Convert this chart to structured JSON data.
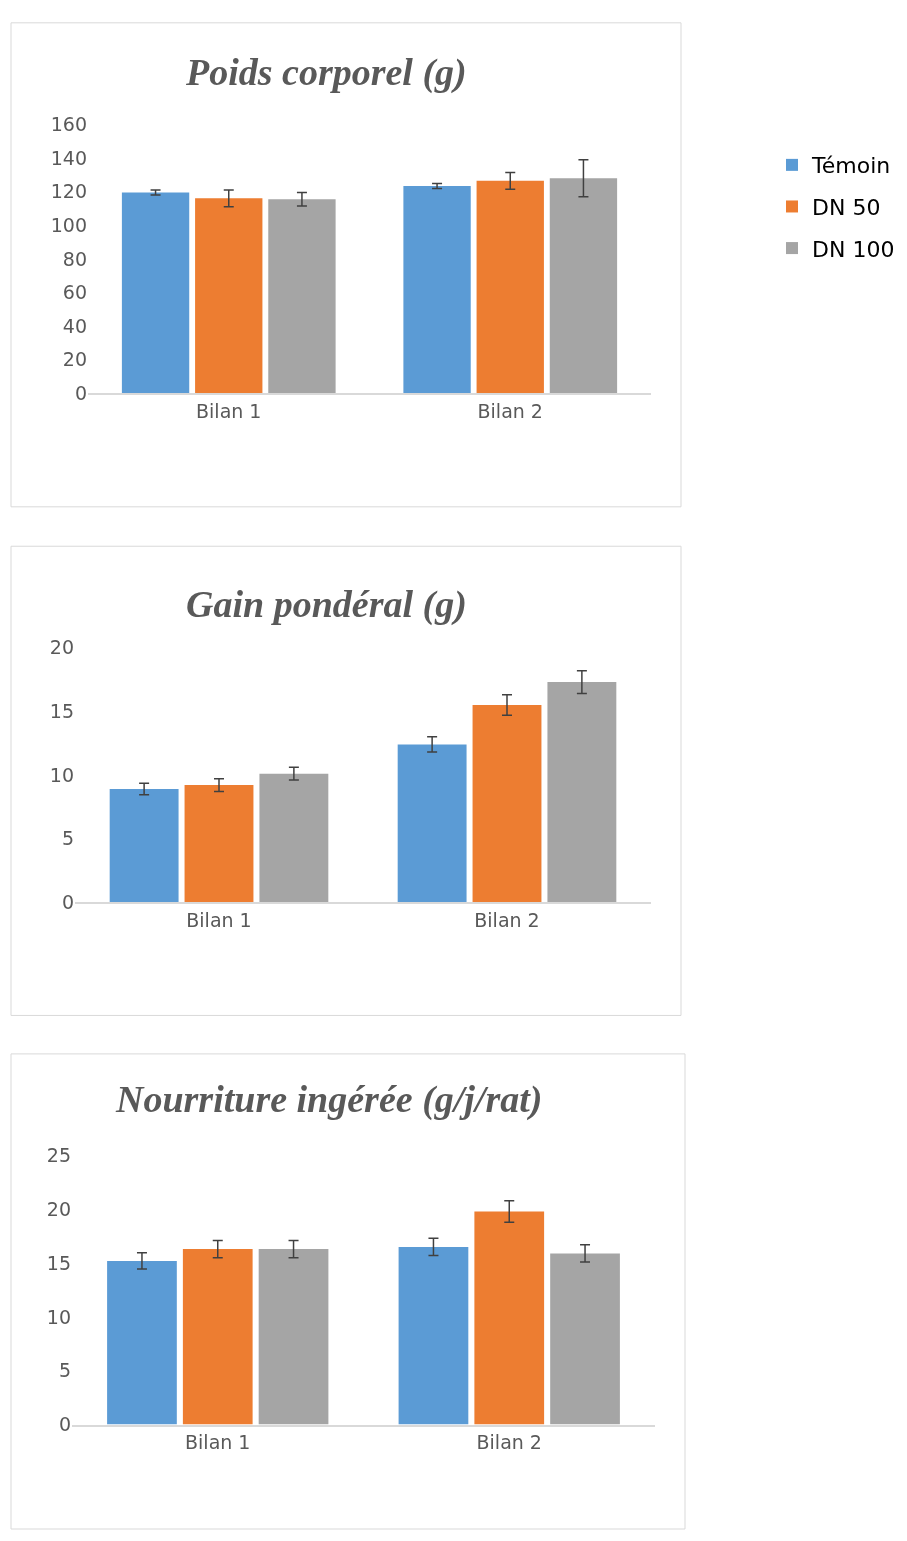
{
  "chart_data": [
    {
      "type": "bar",
      "title": "Poids corporel (g)",
      "categories": [
        "Bilan 1",
        "Bilan 2"
      ],
      "ylim": [
        0,
        160
      ],
      "yticks": [
        0,
        20,
        40,
        60,
        80,
        100,
        120,
        140,
        160
      ],
      "grid": false,
      "legend": "top right",
      "series": [
        {
          "name": "Témoin",
          "color": "#5b9bd5",
          "values": [
            119.5,
            123.3
          ],
          "errors": [
            1.5,
            1.5
          ]
        },
        {
          "name": "DN 50",
          "color": "#ed7d31",
          "values": [
            116,
            126.4
          ],
          "errors": [
            5,
            5
          ]
        },
        {
          "name": "DN 100",
          "color": "#a5a5a5",
          "values": [
            115.5,
            128
          ],
          "errors": [
            4,
            11
          ]
        }
      ]
    },
    {
      "type": "bar",
      "title": "Gain pondéral (g)",
      "categories": [
        "Bilan 1",
        "Bilan 2"
      ],
      "ylim": [
        0,
        20
      ],
      "yticks": [
        0,
        5,
        10,
        15,
        20
      ],
      "grid": false,
      "legend": false,
      "series": [
        {
          "color": "#5b9bd5",
          "values": [
            8.9,
            12.4
          ],
          "errors": [
            0.45,
            0.6
          ]
        },
        {
          "color": "#ed7d31",
          "values": [
            9.2,
            15.5
          ],
          "errors": [
            0.5,
            0.8
          ]
        },
        {
          "color": "#a5a5a5",
          "values": [
            10.1,
            17.3
          ],
          "errors": [
            0.5,
            0.9
          ]
        }
      ]
    },
    {
      "type": "bar",
      "title": "Nourriture ingérée (g/j/rat)",
      "categories": [
        "Bilan 1",
        "Bilan 2"
      ],
      "ylim": [
        0,
        25
      ],
      "yticks": [
        0,
        5,
        10,
        15,
        20,
        25
      ],
      "grid": false,
      "legend": false,
      "series": [
        {
          "color": "#5b9bd5",
          "values": [
            15.2,
            16.5
          ],
          "errors": [
            0.75,
            0.8
          ]
        },
        {
          "color": "#ed7d31",
          "values": [
            16.3,
            19.8
          ],
          "errors": [
            0.8,
            1.0
          ]
        },
        {
          "color": "#a5a5a5",
          "values": [
            16.3,
            15.9
          ],
          "errors": [
            0.8,
            0.8
          ]
        }
      ]
    }
  ]
}
